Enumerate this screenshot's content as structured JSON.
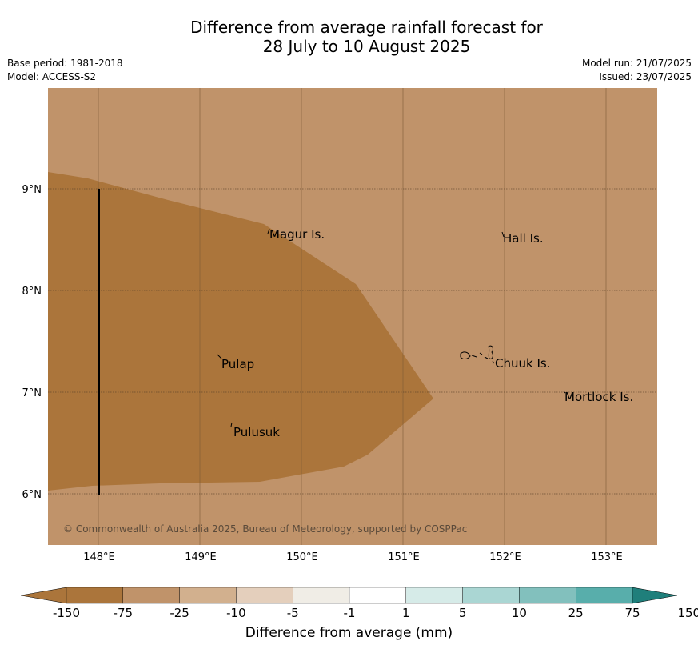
{
  "header": {
    "title_line1": "Difference from average rainfall forecast for",
    "title_line2": "28 July to 10 August 2025",
    "base_period": "Base period: 1981-2018",
    "model": "Model: ACCESS-S2",
    "model_run": "Model run: 21/07/2025",
    "issued": "Issued: 23/07/2025"
  },
  "map": {
    "lon_ticks": [
      "148°E",
      "149°E",
      "150°E",
      "151°E",
      "152°E",
      "153°E"
    ],
    "lat_ticks": [
      "9°N",
      "8°N",
      "7°N",
      "6°N"
    ],
    "places": [
      "Magur Is.",
      "Hall Is.",
      "Pulap",
      "Chuuk Is.",
      "Mortlock Is.",
      "Pulusuk"
    ],
    "copyright": "© Commonwealth of Australia 2025, Bureau of Meteorology, supported by COSPPac",
    "colors": {
      "dark_brown": "#ab753b",
      "light_brown": "#c0936a"
    }
  },
  "colorbar": {
    "labels": [
      "-150",
      "-75",
      "-25",
      "-10",
      "-5",
      "-1",
      "1",
      "5",
      "10",
      "25",
      "75",
      "150"
    ],
    "colors": [
      "#ab753b",
      "#c0936a",
      "#d2b08e",
      "#e4cfbc",
      "#f0ede6",
      "#ffffff",
      "#d6ebe8",
      "#aad6d3",
      "#82c0bd",
      "#58aeab",
      "#2e9b96",
      "#1f7f7b"
    ],
    "label": "Difference from average (mm)"
  }
}
